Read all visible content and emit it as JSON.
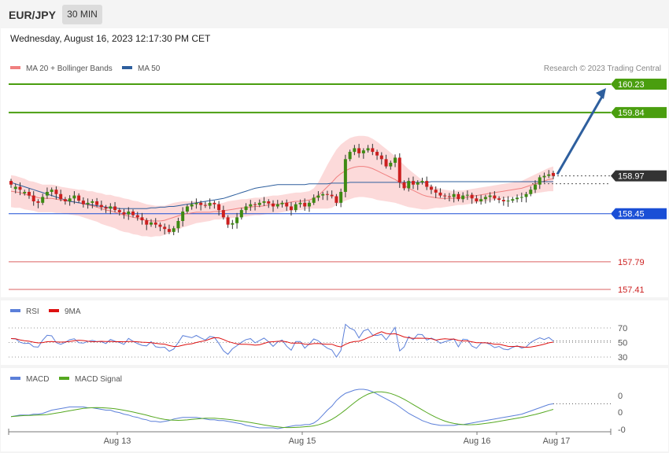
{
  "header": {
    "symbol": "EUR/JPY",
    "timeframe": "30 MIN",
    "datetime": "Wednesday, August 16, 2023 12:17:30 PM CET"
  },
  "legend_main": [
    {
      "label": "MA 20 + Bollinger Bands",
      "color": "#f08080"
    },
    {
      "label": "MA 50",
      "color": "#2e5f9e"
    }
  ],
  "copyright": "Research © 2023 Trading Central",
  "levels": [
    {
      "value": 160.23,
      "label": "160.23",
      "color": "#4a9e0f",
      "kind": "resistance"
    },
    {
      "value": 159.84,
      "label": "159.84",
      "color": "#4a9e0f",
      "kind": "resistance"
    },
    {
      "value": 158.97,
      "label": "158.97",
      "color": "#333333",
      "kind": "last"
    },
    {
      "value": 158.45,
      "label": "158.45",
      "color": "#1a4fd6",
      "kind": "pivot"
    },
    {
      "value": 157.79,
      "label": "157.79",
      "color": "#cc2020",
      "kind": "support"
    },
    {
      "value": 157.41,
      "label": "157.41",
      "color": "#cc2020",
      "kind": "support"
    }
  ],
  "rsi": {
    "legend": [
      {
        "label": "RSI",
        "color": "#5b7fd9"
      },
      {
        "label": "9MA",
        "color": "#dd1111"
      }
    ],
    "ticks": [
      "70",
      "50",
      "30"
    ],
    "levels": [
      70,
      50,
      30
    ]
  },
  "macd": {
    "legend": [
      {
        "label": "MACD",
        "color": "#5b7fd9"
      },
      {
        "label": "MACD Signal",
        "color": "#55a820"
      }
    ],
    "ticks": [
      "0",
      "0",
      "-0"
    ]
  },
  "x_labels": [
    "Aug 13",
    "Aug 15",
    "Aug 16",
    "Aug 17"
  ],
  "chart_data": {
    "type": "line",
    "title": "",
    "ylim": [
      157.3,
      160.35
    ],
    "price_close": [
      158.85,
      158.82,
      158.78,
      158.75,
      158.7,
      158.62,
      158.6,
      158.68,
      158.75,
      158.78,
      158.72,
      158.65,
      158.62,
      158.66,
      158.7,
      158.63,
      158.58,
      158.6,
      158.62,
      158.57,
      158.54,
      158.52,
      158.55,
      158.5,
      158.47,
      158.44,
      158.48,
      158.43,
      158.4,
      158.36,
      158.3,
      158.33,
      158.3,
      158.27,
      158.24,
      158.2,
      158.25,
      158.35,
      158.48,
      158.55,
      158.58,
      158.6,
      158.57,
      158.56,
      158.6,
      158.58,
      158.5,
      158.4,
      158.3,
      158.32,
      158.4,
      158.5,
      158.55,
      158.58,
      158.57,
      158.6,
      158.62,
      158.59,
      158.55,
      158.58,
      158.6,
      158.55,
      158.5,
      158.58,
      158.6,
      158.55,
      158.6,
      158.67,
      158.7,
      158.72,
      158.71,
      158.69,
      158.6,
      158.75,
      159.2,
      159.3,
      159.35,
      159.28,
      159.32,
      159.35,
      159.3,
      159.25,
      159.2,
      159.1,
      159.15,
      159.22,
      158.88,
      158.8,
      158.9,
      158.85,
      158.88,
      158.9,
      158.82,
      158.78,
      158.74,
      158.7,
      158.69,
      158.68,
      158.72,
      158.65,
      158.7,
      158.71,
      158.66,
      158.62,
      158.65,
      158.68,
      158.7,
      158.66,
      158.64,
      158.62,
      158.63,
      158.65,
      158.67,
      158.68,
      158.72,
      158.78,
      158.85,
      158.95,
      158.97,
      158.99,
      158.97
    ],
    "price_open_offset": [
      0.05,
      -0.03,
      0.04,
      -0.02,
      0.05,
      0.08,
      0.02,
      -0.08,
      -0.05,
      -0.03,
      0.06,
      0.07,
      0.03,
      -0.04,
      -0.04,
      0.07,
      0.05,
      -0.02,
      -0.02,
      0.05,
      0.03,
      0.02,
      -0.03,
      0.05,
      0.03,
      0.03,
      -0.04,
      0.05,
      0.03,
      0.04,
      0.06,
      -0.03,
      0.03,
      0.03,
      0.03,
      0.04,
      -0.05,
      -0.1,
      -0.13,
      -0.07,
      -0.03,
      -0.02,
      0.03,
      0.01,
      -0.04,
      0.02,
      0.08,
      0.1,
      0.1,
      -0.02,
      -0.08,
      -0.1,
      -0.05,
      -0.03,
      0.01,
      -0.03,
      -0.02,
      0.03,
      0.04,
      -0.03,
      -0.02,
      0.05,
      0.05,
      -0.08,
      -0.02,
      0.05,
      -0.05,
      -0.07,
      -0.03,
      -0.02,
      0.01,
      0.02,
      0.09,
      -0.15,
      -0.45,
      -0.1,
      -0.05,
      0.07,
      -0.04,
      -0.03,
      0.05,
      0.05,
      0.05,
      0.1,
      -0.05,
      -0.07,
      0.34,
      0.08,
      -0.1,
      0.05,
      -0.03,
      -0.02,
      0.08,
      0.04,
      0.04,
      0.04,
      0.01,
      0.01,
      -0.04,
      0.07,
      -0.05,
      -0.01,
      0.05,
      0.04,
      -0.03,
      -0.03,
      -0.02,
      0.04,
      0.02,
      0.02,
      -0.01,
      -0.02,
      -0.02,
      -0.01,
      -0.04,
      -0.06,
      -0.07,
      -0.1,
      -0.02,
      -0.02,
      0.04
    ],
    "ma20": [
      158.76,
      158.75,
      158.74,
      158.72,
      158.7,
      158.69,
      158.67,
      158.66,
      158.66,
      158.66,
      158.65,
      158.64,
      158.63,
      158.62,
      158.61,
      158.6,
      158.59,
      158.57,
      158.56,
      158.54,
      158.52,
      158.5,
      158.49,
      158.47,
      158.45,
      158.43,
      158.42,
      158.4,
      158.39,
      158.37,
      158.36,
      158.35,
      158.35,
      158.35,
      158.36,
      158.38,
      158.4,
      158.42,
      158.44,
      158.45,
      158.46,
      158.47,
      158.47,
      158.47,
      158.47,
      158.48,
      158.48,
      158.49,
      158.5,
      158.51,
      158.52,
      158.53,
      158.53,
      158.54,
      158.55,
      158.55,
      158.56,
      158.57,
      158.58,
      158.58,
      158.59,
      158.6,
      158.61,
      158.62,
      158.62,
      158.63,
      158.64,
      158.66,
      158.7,
      158.76,
      158.82,
      158.88,
      158.95,
      159.0,
      159.04,
      159.07,
      159.09,
      159.1,
      159.1,
      159.09,
      159.07,
      159.04,
      159.01,
      158.98,
      158.95,
      158.92,
      158.88,
      158.84,
      158.8,
      158.77,
      158.74,
      158.71,
      158.69,
      158.68,
      158.67,
      158.66,
      158.66,
      158.66,
      158.66,
      158.67,
      158.67,
      158.68,
      158.69,
      158.7,
      158.71,
      158.72,
      158.73,
      158.74,
      158.75,
      158.76,
      158.77,
      158.78,
      158.79,
      158.8,
      158.82,
      158.84,
      158.86,
      158.88,
      158.9,
      158.92,
      158.93
    ],
    "ma50": [
      158.88,
      158.86,
      158.84,
      158.82,
      158.8,
      158.78,
      158.76,
      158.74,
      158.72,
      158.7,
      158.68,
      158.66,
      158.64,
      158.62,
      158.61,
      158.6,
      158.59,
      158.58,
      158.57,
      158.56,
      158.55,
      158.54,
      158.53,
      158.53,
      158.52,
      158.52,
      158.52,
      158.52,
      158.52,
      158.52,
      158.52,
      158.53,
      158.53,
      158.54,
      158.54,
      158.55,
      158.55,
      158.56,
      158.57,
      158.58,
      158.59,
      158.6,
      158.61,
      158.62,
      158.63,
      158.64,
      158.65,
      158.66,
      158.68,
      158.7,
      158.72,
      158.74,
      158.76,
      158.78,
      158.8,
      158.81,
      158.82,
      158.83,
      158.84,
      158.85,
      158.85,
      158.85,
      158.85,
      158.85,
      158.85,
      158.85,
      158.86,
      158.86,
      158.86,
      158.86,
      158.86,
      158.87,
      158.87,
      158.87,
      158.87,
      158.88,
      158.88,
      158.88,
      158.88,
      158.88,
      158.88,
      158.88,
      158.88,
      158.88,
      158.88,
      158.88,
      158.88,
      158.88,
      158.88,
      158.88,
      158.88,
      158.88,
      158.88,
      158.89,
      158.89,
      158.89,
      158.89,
      158.89,
      158.89,
      158.89,
      158.89,
      158.89,
      158.89,
      158.89,
      158.89,
      158.89,
      158.89,
      158.89,
      158.89,
      158.89,
      158.89,
      158.89,
      158.89,
      158.89,
      158.89,
      158.89,
      158.89,
      158.89,
      158.89,
      158.89,
      158.89
    ],
    "bb_width": [
      0.22,
      0.22,
      0.21,
      0.21,
      0.2,
      0.2,
      0.2,
      0.19,
      0.19,
      0.19,
      0.19,
      0.18,
      0.18,
      0.18,
      0.18,
      0.18,
      0.19,
      0.19,
      0.2,
      0.2,
      0.21,
      0.21,
      0.22,
      0.22,
      0.23,
      0.23,
      0.23,
      0.23,
      0.23,
      0.23,
      0.22,
      0.22,
      0.21,
      0.21,
      0.2,
      0.2,
      0.2,
      0.19,
      0.18,
      0.17,
      0.16,
      0.15,
      0.14,
      0.13,
      0.12,
      0.11,
      0.11,
      0.11,
      0.12,
      0.12,
      0.12,
      0.12,
      0.12,
      0.12,
      0.12,
      0.12,
      0.12,
      0.12,
      0.12,
      0.12,
      0.12,
      0.12,
      0.12,
      0.12,
      0.12,
      0.12,
      0.12,
      0.14,
      0.18,
      0.24,
      0.3,
      0.35,
      0.38,
      0.4,
      0.41,
      0.42,
      0.42,
      0.42,
      0.42,
      0.42,
      0.41,
      0.4,
      0.38,
      0.36,
      0.34,
      0.32,
      0.3,
      0.28,
      0.26,
      0.24,
      0.22,
      0.2,
      0.18,
      0.16,
      0.14,
      0.13,
      0.12,
      0.11,
      0.1,
      0.1,
      0.1,
      0.1,
      0.1,
      0.1,
      0.1,
      0.1,
      0.1,
      0.1,
      0.1,
      0.1,
      0.1,
      0.1,
      0.1,
      0.1,
      0.11,
      0.12,
      0.13,
      0.14,
      0.15,
      0.16,
      0.17
    ],
    "projection": {
      "from": 158.97,
      "to": 160.23
    }
  }
}
